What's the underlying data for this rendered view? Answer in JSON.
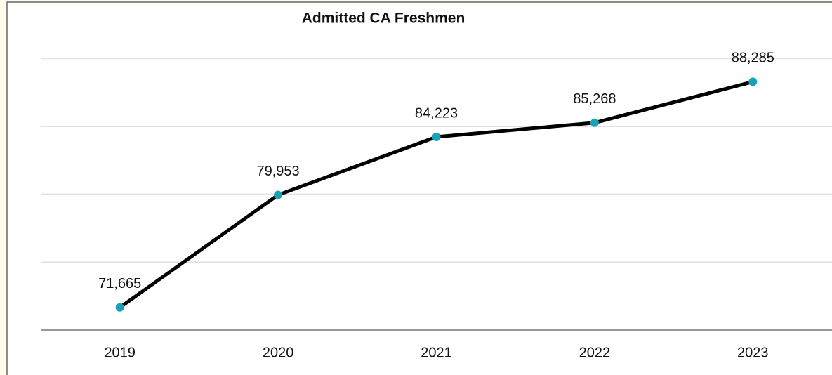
{
  "chart_data": {
    "type": "line",
    "title": "Admitted CA Freshmen",
    "categories": [
      "2019",
      "2020",
      "2021",
      "2022",
      "2023"
    ],
    "series": [
      {
        "color": "#000000",
        "marker_color": "#17a2b8",
        "values": [
          71665,
          79953,
          84223,
          85268,
          88285
        ],
        "value_labels": [
          "71,665",
          "79,953",
          "84,223",
          "85,268",
          "88,285"
        ]
      }
    ],
    "ylim": [
      70000,
      92000
    ],
    "yticks": [
      70000,
      75000,
      80000,
      85000,
      90000
    ],
    "grid": true
  }
}
